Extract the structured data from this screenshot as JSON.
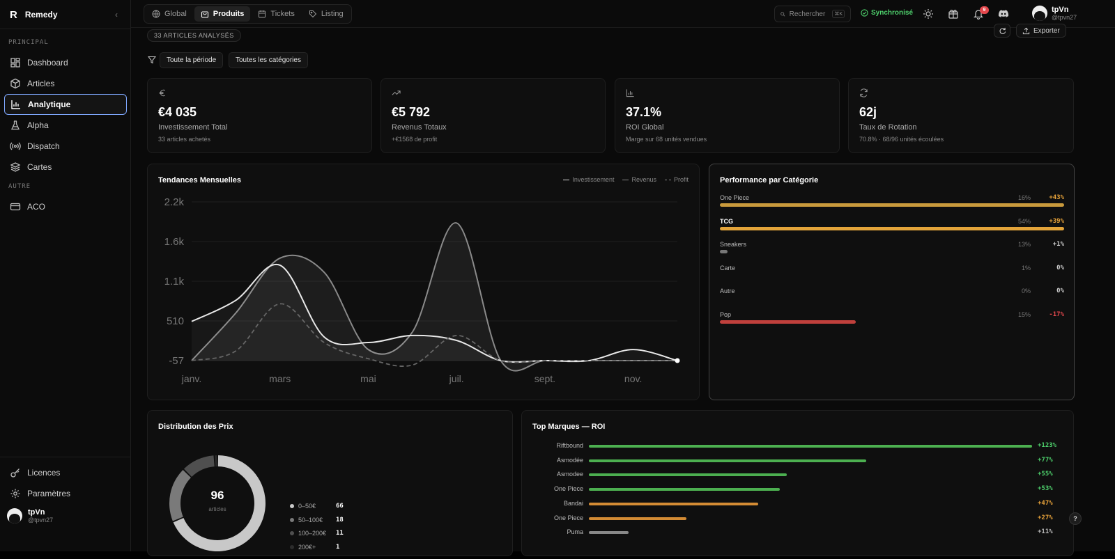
{
  "brand": {
    "logo": "R",
    "name": "Remedy"
  },
  "sidebar": {
    "section_principal": "PRINCIPAL",
    "section_autre": "AUTRE",
    "items": [
      {
        "label": "Dashboard",
        "icon": "dashboard-icon"
      },
      {
        "label": "Articles",
        "icon": "box-icon"
      },
      {
        "label": "Analytique",
        "icon": "bar-chart-icon",
        "active": true
      },
      {
        "label": "Alpha",
        "icon": "flask-icon"
      },
      {
        "label": "Dispatch",
        "icon": "broadcast-icon"
      },
      {
        "label": "Cartes",
        "icon": "layers-icon"
      }
    ],
    "other_items": [
      {
        "label": "ACO",
        "icon": "card-icon"
      }
    ],
    "bottom_items": [
      {
        "label": "Licences",
        "icon": "key-icon"
      },
      {
        "label": "Paramètres",
        "icon": "gear-icon"
      }
    ],
    "user": {
      "name": "tpVn",
      "handle": "@tpvn27"
    }
  },
  "topbar": {
    "tabs": [
      {
        "label": "Global",
        "icon": "globe-icon"
      },
      {
        "label": "Produits",
        "icon": "bag-icon",
        "active": true
      },
      {
        "label": "Tickets",
        "icon": "calendar-icon"
      },
      {
        "label": "Listing",
        "icon": "tag-icon"
      }
    ],
    "search_label": "Rechercher",
    "search_kbd": "⌘K",
    "sync_label": "Synchronisé",
    "notif_count": "9",
    "user": {
      "name": "tpVn",
      "handle": "@tpvn27"
    }
  },
  "header": {
    "count_label": "33 ARTICLES ANALYSÉS",
    "export_label": "Exporter",
    "filters": [
      "Toute la période",
      "Toutes les catégories"
    ]
  },
  "kpis": [
    {
      "icon": "euro-icon",
      "value": "€4 035",
      "label": "Investissement Total",
      "sub": "33 articles achetés"
    },
    {
      "icon": "trend-up-icon",
      "value": "€5 792",
      "label": "Revenus Totaux",
      "sub": "+€1568 de profit"
    },
    {
      "icon": "bar-chart-icon",
      "value": "37.1%",
      "label": "ROI Global",
      "sub": "Marge sur 68 unités vendues"
    },
    {
      "icon": "refresh-icon",
      "value": "62j",
      "label": "Taux de Rotation",
      "sub": "70.8% · 68/96 unités écoulées"
    }
  ],
  "trends": {
    "title": "Tendances Mensuelles",
    "legend": [
      "Investissement",
      "Revenus",
      "Profit"
    ]
  },
  "chart_data": {
    "type": "area",
    "x": [
      "janv.",
      "févr.",
      "mars",
      "avr.",
      "mai",
      "juin",
      "juil.",
      "août",
      "sept.",
      "oct.",
      "nov.",
      "déc."
    ],
    "x_tick_labels": [
      "janv.",
      "mars",
      "mai",
      "juil.",
      "sept.",
      "nov."
    ],
    "y_ticks": [
      "2.2k",
      "1.6k",
      "1.1k",
      "510",
      "-57"
    ],
    "ylim": [
      -57,
      2200
    ],
    "series": [
      {
        "name": "Investissement",
        "values": [
          500,
          800,
          1300,
          280,
          200,
          300,
          230,
          -57,
          -57,
          -57,
          100,
          -57
        ]
      },
      {
        "name": "Revenus",
        "values": [
          -57,
          620,
          1400,
          1200,
          100,
          350,
          1900,
          -57,
          -57,
          -57,
          -57,
          -57
        ]
      },
      {
        "name": "Profit",
        "values": [
          -57,
          80,
          750,
          200,
          -30,
          -120,
          300,
          -57,
          -57,
          -57,
          -57,
          -57
        ]
      }
    ]
  },
  "performance": {
    "title": "Performance par Catégorie",
    "rows": [
      {
        "name": "One Piece",
        "pct": "16%",
        "roi": "+43%",
        "fill": 1.0,
        "color": "#c99a3c",
        "roi_color": "#e8a33a"
      },
      {
        "name": "TCG",
        "pct": "54%",
        "roi": "+39%",
        "fill": 1.0,
        "color": "#e3a43a",
        "roi_color": "#e8a33a",
        "bold": true
      },
      {
        "name": "Sneakers",
        "pct": "13%",
        "roi": "+1%",
        "fill": 0.022,
        "color": "#777",
        "roi_color": "#cccccc"
      },
      {
        "name": "Carte",
        "pct": "1%",
        "roi": "0%",
        "fill": 0,
        "color": "#777",
        "roi_color": "#cccccc"
      },
      {
        "name": "Autre",
        "pct": "0%",
        "roi": "0%",
        "fill": 0,
        "color": "#777",
        "roi_color": "#cccccc"
      },
      {
        "name": "Pop",
        "pct": "15%",
        "roi": "-17%",
        "fill": 0.395,
        "color": "#c0403c",
        "roi_color": "#e5484d"
      }
    ]
  },
  "distribution": {
    "title": "Distribution des Prix",
    "total": "96",
    "total_label": "articles",
    "rows": [
      {
        "label": "0–50€",
        "value": "66",
        "color": "#c8c8c8"
      },
      {
        "label": "50–100€",
        "value": "18",
        "color": "#7a7a7a"
      },
      {
        "label": "100–200€",
        "value": "11",
        "color": "#4f4f4f"
      },
      {
        "label": "200€+",
        "value": "1",
        "color": "#2c2c2c"
      }
    ]
  },
  "brands": {
    "title": "Top Marques — ROI",
    "rows": [
      {
        "name": "Riftbound",
        "roi": "+123%",
        "fill": 1.0,
        "color": "#4caf50",
        "roi_color": "#4ed06c"
      },
      {
        "name": "Asmodée",
        "roi": "+77%",
        "fill": 0.626,
        "color": "#4caf50",
        "roi_color": "#4ed06c"
      },
      {
        "name": "Asmodee",
        "roi": "+55%",
        "fill": 0.447,
        "color": "#4caf50",
        "roi_color": "#4ed06c"
      },
      {
        "name": "One Piece",
        "roi": "+53%",
        "fill": 0.431,
        "color": "#4caf50",
        "roi_color": "#4ed06c"
      },
      {
        "name": "Bandai",
        "roi": "+47%",
        "fill": 0.382,
        "color": "#d38b34",
        "roi_color": "#e8a33a"
      },
      {
        "name": "One Piece",
        "roi": "+27%",
        "fill": 0.22,
        "color": "#d38b34",
        "roi_color": "#e8a33a"
      },
      {
        "name": "Puma",
        "roi": "+11%",
        "fill": 0.089,
        "color": "#888888",
        "roi_color": "#bbbbbb"
      }
    ]
  },
  "help_label": "?"
}
